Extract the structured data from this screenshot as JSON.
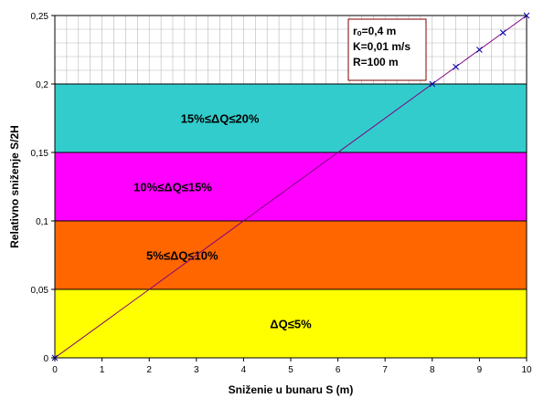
{
  "chart_data": {
    "type": "area",
    "xlabel": "Sniženie u bunaru S (m)",
    "ylabel": "Relativno sniženje S/2H",
    "xlim": [
      0,
      10
    ],
    "ylim": [
      0,
      0.25
    ],
    "x_ticks": [
      "0",
      "1",
      "2",
      "3",
      "4",
      "5",
      "6",
      "7",
      "8",
      "9",
      "10"
    ],
    "y_ticks": [
      "0",
      "0,05",
      "0,1",
      "0,15",
      "0,2",
      "0,25"
    ],
    "grid": true,
    "bands": [
      {
        "label": "ΔQ≤5%",
        "y0": 0,
        "y1": 0.05,
        "color": "#ffff00"
      },
      {
        "label": "5%≤ΔQ≤10%",
        "y0": 0.05,
        "y1": 0.1,
        "color": "#ff6600"
      },
      {
        "label": "10%≤ΔQ≤15%",
        "y0": 0.1,
        "y1": 0.15,
        "color": "#ff00ff"
      },
      {
        "label": "15%≤ΔQ≤20%",
        "y0": 0.15,
        "y1": 0.2,
        "color": "#33cccc"
      }
    ],
    "series": [
      {
        "color": "#800080",
        "marker": "x",
        "x": [
          0,
          8,
          8.5,
          9,
          9.5,
          10
        ],
        "y": [
          0,
          0.2,
          0.2125,
          0.225,
          0.2375,
          0.25
        ]
      }
    ],
    "annotation_lines": [
      "rₒ=0,4 m",
      "K=0,01 m/s",
      "R=100 m"
    ],
    "legend_placement": "top-right"
  }
}
